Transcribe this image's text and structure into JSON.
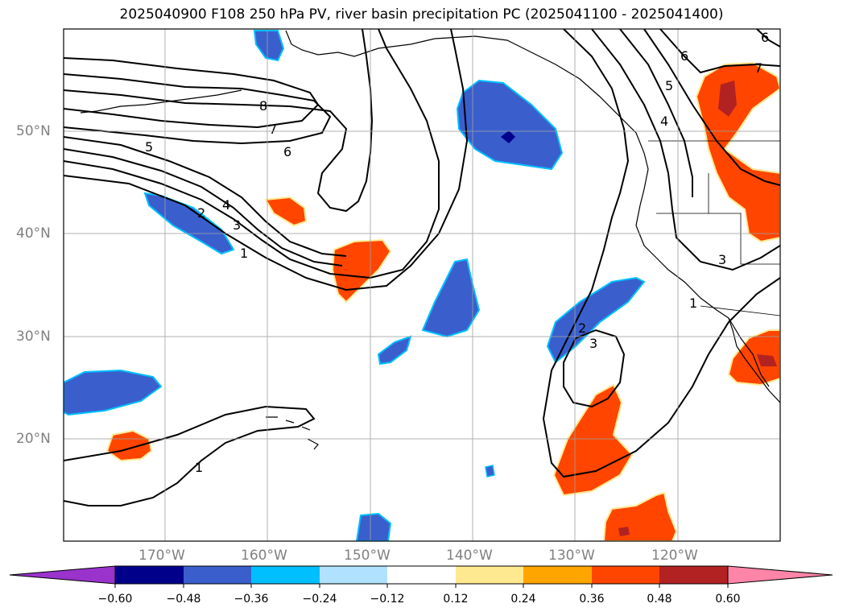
{
  "title": "2025040900 F108 250 hPa PV, river basin precipitation PC (2025041100 - 2025041400)",
  "lat_labels": [
    "50°N",
    "40°N",
    "30°N",
    "20°N"
  ],
  "lon_labels": [
    "170°W",
    "160°W",
    "150°W",
    "140°W",
    "130°W",
    "120°W"
  ],
  "colorbar": {
    "ticks": [
      "−0.60",
      "−0.48",
      "−0.36",
      "−0.24",
      "−0.12",
      "0.12",
      "0.24",
      "0.36",
      "0.48",
      "0.60"
    ],
    "colors": [
      "#9933cc",
      "#00008b",
      "#3a5fcd",
      "#00bfff",
      "#b0e2ff",
      "#ffffff",
      "#ffe990",
      "#ffa500",
      "#ff4500",
      "#b22222",
      "#ff85a8"
    ]
  },
  "contour_labels": [
    "8",
    "7",
    "6",
    "5",
    "4",
    "3",
    "2",
    "1",
    "6",
    "7",
    "5",
    "4",
    "3",
    "1",
    "2",
    "3",
    "1",
    "6"
  ]
}
